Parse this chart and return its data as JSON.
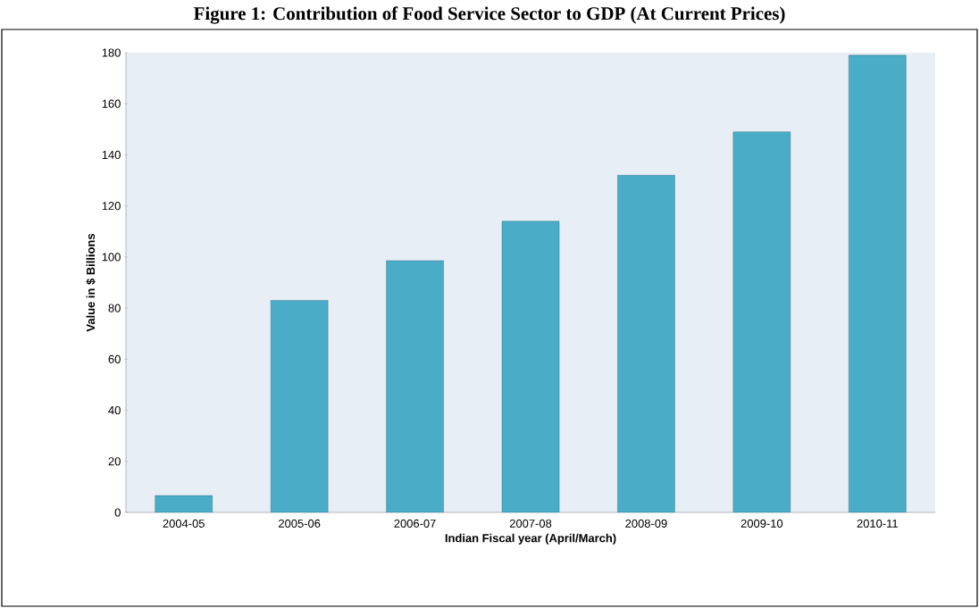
{
  "chart_data": {
    "type": "bar",
    "title": "Figure 1: Contribution of Food Service Sector to GDP (At Current Prices)",
    "xlabel": "Indian Fiscal year (April/March)",
    "ylabel": "Value in $ Billions",
    "categories": [
      "2004-05",
      "2005-06",
      "2006-07",
      "2007-08",
      "2008-09",
      "2009-10",
      "2010-11"
    ],
    "values": [
      6.6,
      83,
      98.6,
      114,
      132,
      149,
      179
    ],
    "color": "#4aacc6",
    "ylim": [
      0,
      180
    ],
    "yticks": [
      0,
      20,
      40,
      60,
      80,
      100,
      120,
      140,
      160,
      180
    ],
    "grid": false
  }
}
